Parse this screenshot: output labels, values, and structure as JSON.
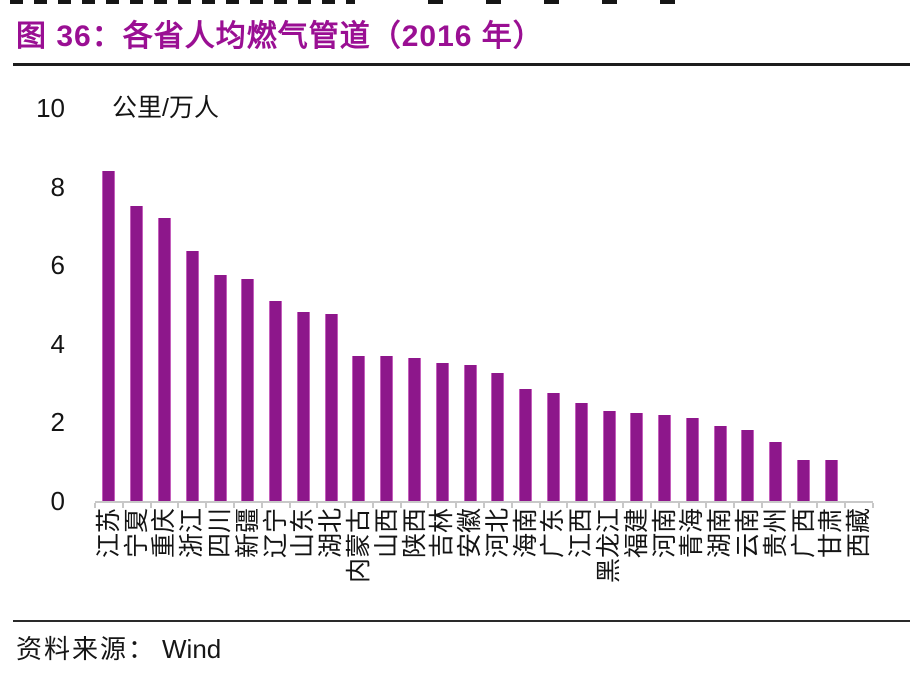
{
  "title": "图 36：各省人均燃气管道（2016 年）",
  "source": {
    "label": "资料来源：",
    "value": "Wind"
  },
  "colors": {
    "title": "#9A0F93",
    "bar": "#8D178B",
    "bar_edge": "#C45FBC",
    "axis": "#C8C8C8",
    "text": "#141414"
  },
  "chart_data": {
    "type": "bar",
    "title": "图 36：各省人均燃气管道（2016 年）",
    "unit_label": "公里/万人",
    "xlabel": "",
    "ylabel": "公里/万人",
    "ylim": [
      0,
      10
    ],
    "yticks": [
      0,
      2,
      4,
      6,
      8,
      10
    ],
    "grid": false,
    "legend": false,
    "bar_color": "#8D178B",
    "categories": [
      "江苏",
      "宁夏",
      "重庆",
      "浙江",
      "四川",
      "新疆",
      "辽宁",
      "山东",
      "湖北",
      "内蒙古",
      "山西",
      "陕西",
      "吉林",
      "安徽",
      "河北",
      "海南",
      "广东",
      "江西",
      "黑龙江",
      "福建",
      "河南",
      "青海",
      "湖南",
      "云南",
      "贵州",
      "广西",
      "甘肃",
      "西藏"
    ],
    "values": [
      8.4,
      7.5,
      7.2,
      6.35,
      5.75,
      5.65,
      5.1,
      4.8,
      4.75,
      3.7,
      3.7,
      3.65,
      3.5,
      3.45,
      3.25,
      2.85,
      2.75,
      2.5,
      2.3,
      2.25,
      2.2,
      2.1,
      1.9,
      1.8,
      1.5,
      1.05,
      1.05,
      0
    ]
  }
}
